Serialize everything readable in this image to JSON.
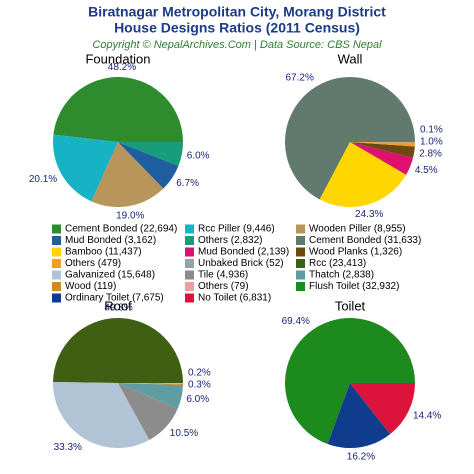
{
  "title": "Biratnagar Metropolitan City, Morang District",
  "subtitle": "House Designs Ratios (2011 Census)",
  "source": "Copyright © NepalArchives.Com | Data Source: CBS Nepal",
  "chart_data": [
    {
      "type": "pie",
      "title": "Foundation",
      "categories": [
        "Cement Bonded (22,694)",
        "Rcc Piller (9,446)",
        "Wooden Piller (8,955)",
        "Mud Bonded (3,162)",
        "Others (2,832)"
      ],
      "values": [
        48.2,
        20.1,
        19.0,
        6.7,
        6.0
      ],
      "value_labels": [
        "48.2%",
        "20.1%",
        "19.0%",
        "6.7%",
        "6.0%"
      ],
      "colors": [
        "#2e8b2e",
        "#17b3c4",
        "#b8955a",
        "#1f5fa0",
        "#179d7c"
      ]
    },
    {
      "type": "pie",
      "title": "Wall",
      "categories": [
        "Cement Bonded (31,633)",
        "Bamboo (11,437)",
        "Mud Bonded (2,139)",
        "Wood Planks (1,326)",
        "Others (479)",
        "Unbaked Brick (52)"
      ],
      "values": [
        67.2,
        24.3,
        4.5,
        2.8,
        1.0,
        0.1
      ],
      "value_labels": [
        "67.2%",
        "24.3%",
        "4.5%",
        "2.8%",
        "1.0%",
        "0.1%"
      ],
      "colors": [
        "#627a6e",
        "#ffd700",
        "#e0116e",
        "#6b4a12",
        "#f39c2a",
        "#9aa0a8"
      ]
    },
    {
      "type": "pie",
      "title": "Roof",
      "categories": [
        "Rcc (23,413)",
        "Galvanized (15,648)",
        "Tile (4,936)",
        "Thatch (2,838)",
        "Wood (119)",
        "Others (79)"
      ],
      "values": [
        49.8,
        33.3,
        10.5,
        6.0,
        0.3,
        0.2
      ],
      "value_labels": [
        "49.8%",
        "33.3%",
        "10.5%",
        "6.0%",
        "0.3%",
        "0.2%"
      ],
      "colors": [
        "#3f5f12",
        "#b0c4d6",
        "#8c8c8c",
        "#5f9ea0",
        "#d28b1e",
        "#e8a0a0"
      ]
    },
    {
      "type": "pie",
      "title": "Toilet",
      "categories": [
        "Flush Toilet (32,932)",
        "Ordinary Toilet (7,675)",
        "No Toilet (6,831)"
      ],
      "values": [
        69.4,
        16.2,
        14.4
      ],
      "value_labels": [
        "69.4%",
        "16.2%",
        "14.4%"
      ],
      "colors": [
        "#1d8a1d",
        "#0f3c8c",
        "#dc143c"
      ]
    }
  ]
}
